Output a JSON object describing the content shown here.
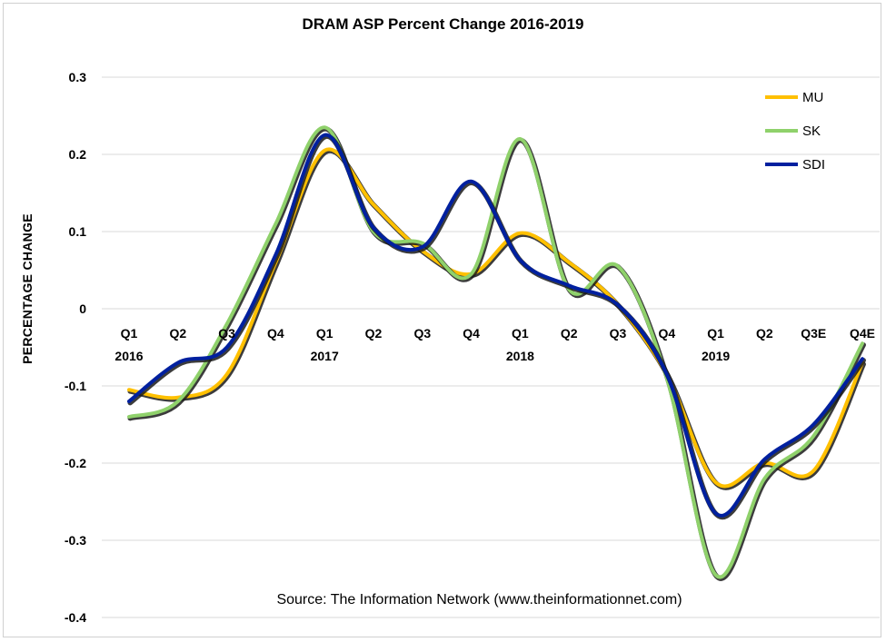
{
  "chart_data": {
    "type": "line",
    "title": "DRAM ASP Percent Change 2016-2019",
    "ylabel": "PERCENTAGE CHANGE",
    "xlabel": "",
    "source": "Source: The Information Network (www.theinformationnet.com)",
    "ylim": [
      -0.4,
      0.3
    ],
    "yticks": [
      "0.3",
      "0.2",
      "0.1",
      "0",
      "-0.1",
      "-0.2",
      "-0.3",
      "-0.4"
    ],
    "grid": true,
    "legend_position": "top-right",
    "categories": [
      {
        "quarter": "Q1",
        "year": "2016"
      },
      {
        "quarter": "Q2",
        "year": ""
      },
      {
        "quarter": "Q3",
        "year": ""
      },
      {
        "quarter": "Q4",
        "year": ""
      },
      {
        "quarter": "Q1",
        "year": "2017"
      },
      {
        "quarter": "Q2",
        "year": ""
      },
      {
        "quarter": "Q3",
        "year": ""
      },
      {
        "quarter": "Q4",
        "year": ""
      },
      {
        "quarter": "Q1",
        "year": "2018"
      },
      {
        "quarter": "Q2",
        "year": ""
      },
      {
        "quarter": "Q3",
        "year": ""
      },
      {
        "quarter": "Q4",
        "year": ""
      },
      {
        "quarter": "Q1",
        "year": "2019"
      },
      {
        "quarter": "Q2",
        "year": ""
      },
      {
        "quarter": "Q3E",
        "year": ""
      },
      {
        "quarter": "Q4E",
        "year": ""
      }
    ],
    "series": [
      {
        "name": "MU",
        "color": "#ffc000",
        "values": [
          -0.105,
          -0.115,
          -0.085,
          0.06,
          0.205,
          0.135,
          0.075,
          0.045,
          0.098,
          0.06,
          0.005,
          -0.085,
          -0.225,
          -0.2,
          -0.21,
          -0.07
        ]
      },
      {
        "name": "SK",
        "color": "#8fd16b",
        "values": [
          -0.14,
          -0.12,
          -0.02,
          0.11,
          0.235,
          0.1,
          0.085,
          0.045,
          0.22,
          0.025,
          0.055,
          -0.09,
          -0.345,
          -0.22,
          -0.165,
          -0.045
        ]
      },
      {
        "name": "SDI",
        "color": "#00209f",
        "values": [
          -0.12,
          -0.07,
          -0.05,
          0.07,
          0.225,
          0.105,
          0.08,
          0.165,
          0.063,
          0.03,
          0.005,
          -0.085,
          -0.265,
          -0.195,
          -0.15,
          -0.065
        ]
      }
    ]
  }
}
